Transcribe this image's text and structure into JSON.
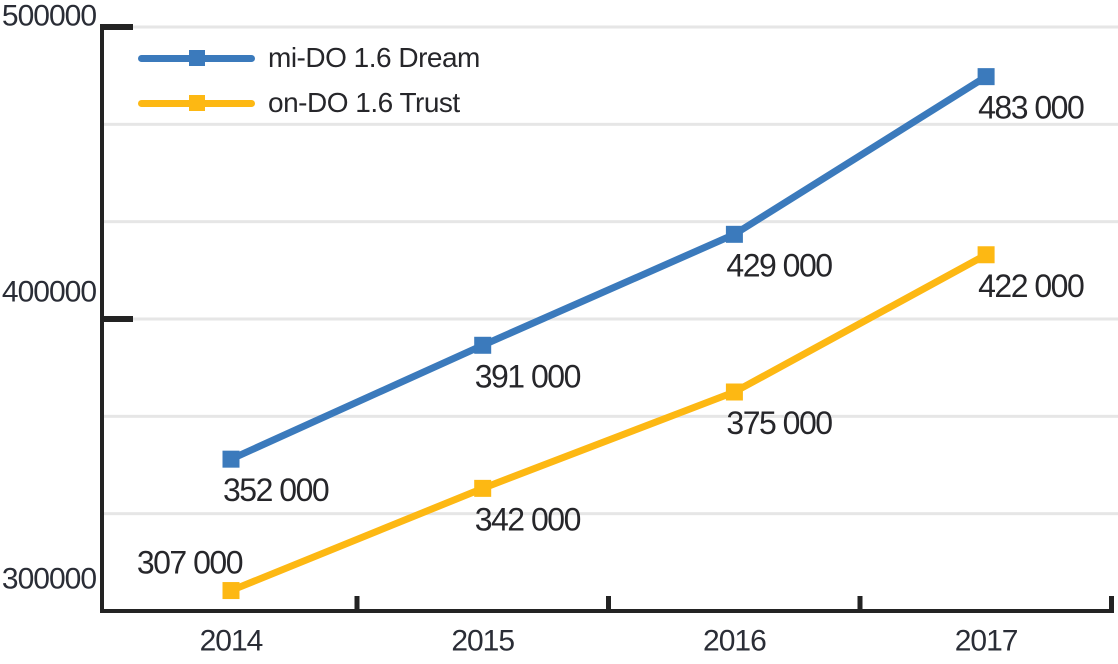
{
  "chart_data": {
    "type": "line",
    "title": "",
    "xlabel": "",
    "ylabel": "",
    "categories": [
      "2014",
      "2015",
      "2016",
      "2017"
    ],
    "series": [
      {
        "name": "mi-DO 1.6 Dream",
        "color": "#3b7abc",
        "values": [
          352000,
          391000,
          429000,
          483000
        ],
        "point_labels": [
          "352 000",
          "391 000",
          "429 000",
          "483 000"
        ],
        "label_placement": [
          "below",
          "below",
          "below",
          "below"
        ]
      },
      {
        "name": "on-DO 1.6 Trust",
        "color": "#fdb813",
        "values": [
          307000,
          342000,
          375000,
          422000
        ],
        "point_labels": [
          "307 000",
          "342 000",
          "375 000",
          "422 000"
        ],
        "label_placement": [
          "above",
          "below",
          "below",
          "below"
        ]
      }
    ],
    "ylim": [
      300000,
      500000
    ],
    "yticks": [
      {
        "value": 300000,
        "label": "300000"
      },
      {
        "value": 400000,
        "label": "400000"
      },
      {
        "value": 500000,
        "label": "500000"
      }
    ],
    "grid": true,
    "gridlines_between_major_ticks": 3,
    "legend_position": "top-left",
    "marker": "square"
  },
  "colors": {
    "background": "#ffffff",
    "axis": "#232323",
    "gridline": "#e6e6e6",
    "axis_label_text": "#2a2d36",
    "point_label_text": "#26262a",
    "series_0": "#3b7abc",
    "series_1": "#fdb813"
  }
}
